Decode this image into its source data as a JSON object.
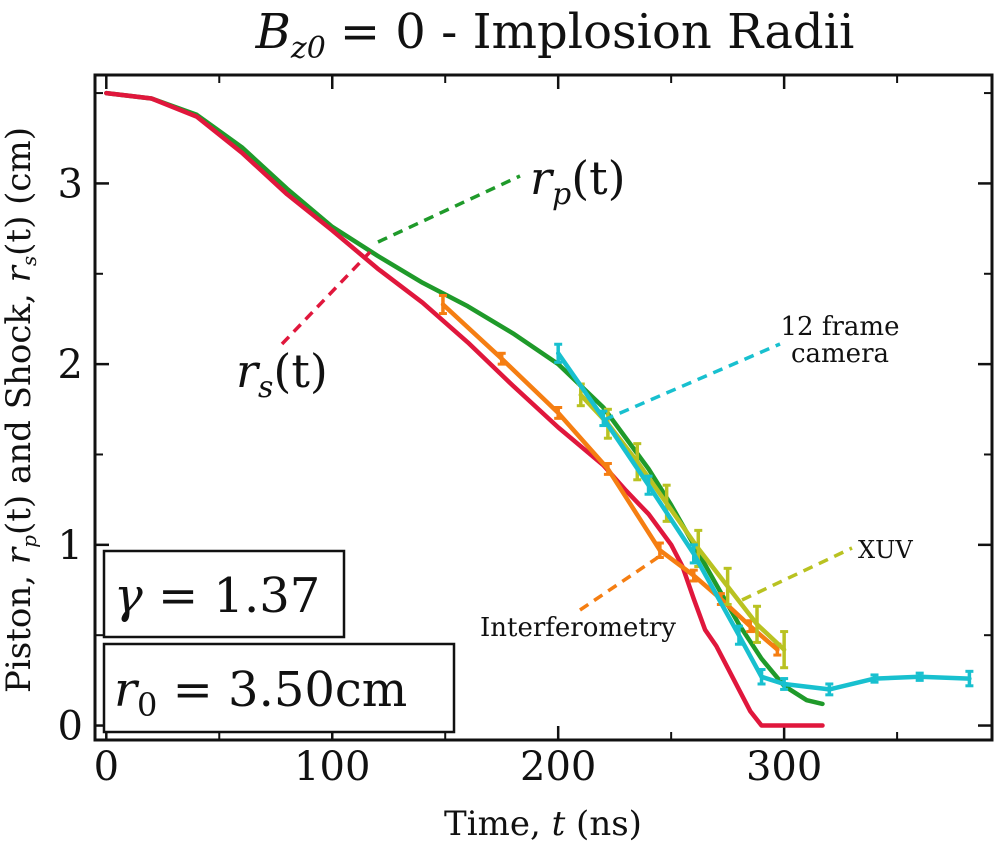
{
  "chart_data": {
    "type": "line",
    "title": "B_z0 = 0 - Implosion Radii",
    "title_parts": {
      "var": "B",
      "sub": "z0",
      "rest": "= 0 - Implosion Radii"
    },
    "xlabel": "Time, t (ns)",
    "xlabel_parts": {
      "pre": "Time, ",
      "var": "t",
      "post": " (ns)"
    },
    "ylabel": "Piston, r_p(t) and Shock, r_s(t) (cm)",
    "ylabel_parts": {
      "a": "Piston, ",
      "b": " and Shock, ",
      "c": " (cm)",
      "rp": "r",
      "rp_sub": "p",
      "rp_arg": "(t)",
      "rs": "r",
      "rs_sub": "s",
      "rs_arg": "(t)"
    },
    "xlim": [
      -5,
      392
    ],
    "ylim": [
      -0.08,
      3.6
    ],
    "xticks": [
      0,
      100,
      200,
      300
    ],
    "yticks": [
      0,
      1,
      2,
      3
    ],
    "x_minor_ticks": [
      50,
      150,
      250,
      350
    ],
    "y_minor_ticks": [
      0.5,
      1.5,
      2.5,
      3.5
    ],
    "series": [
      {
        "name": "r_p(t)",
        "label": "r_p(t)",
        "color": "#1f9a2a",
        "x": [
          0,
          20,
          40,
          60,
          80,
          100,
          120,
          140,
          160,
          180,
          200,
          220,
          240,
          250,
          260,
          270,
          280,
          290,
          300,
          310,
          317
        ],
        "y": [
          3.5,
          3.47,
          3.38,
          3.2,
          2.97,
          2.76,
          2.6,
          2.45,
          2.32,
          2.17,
          2.0,
          1.76,
          1.42,
          1.22,
          1.0,
          0.78,
          0.56,
          0.37,
          0.22,
          0.14,
          0.12
        ]
      },
      {
        "name": "r_s(t)",
        "label": "r_s(t)",
        "color": "#e0173c",
        "x": [
          0,
          20,
          40,
          60,
          80,
          100,
          120,
          140,
          160,
          180,
          200,
          220,
          230,
          240,
          250,
          255,
          260,
          265,
          270,
          275,
          280,
          285,
          290,
          300,
          310,
          317
        ],
        "y": [
          3.5,
          3.47,
          3.37,
          3.17,
          2.94,
          2.74,
          2.53,
          2.34,
          2.12,
          1.88,
          1.65,
          1.44,
          1.3,
          1.17,
          1.0,
          0.88,
          0.7,
          0.53,
          0.44,
          0.32,
          0.2,
          0.08,
          0.0,
          0.0,
          0.0,
          0.0
        ]
      },
      {
        "name": "Interferometry",
        "label": "Interferometry",
        "color": "#f57e12",
        "error_bars": true,
        "x": [
          149,
          175,
          200,
          222,
          245,
          260,
          272,
          285,
          297
        ],
        "y": [
          2.33,
          2.03,
          1.73,
          1.42,
          0.97,
          0.83,
          0.7,
          0.55,
          0.42
        ],
        "err": [
          0.05,
          0.03,
          0.03,
          0.03,
          0.04,
          0.03,
          0.03,
          0.03,
          0.03
        ]
      },
      {
        "name": "XUV",
        "label": "XUV",
        "color": "#b9c221",
        "error_bars": true,
        "x": [
          210,
          222,
          235,
          248,
          262,
          275,
          288,
          300
        ],
        "y": [
          1.83,
          1.67,
          1.46,
          1.23,
          0.98,
          0.77,
          0.56,
          0.42
        ],
        "err": [
          0.06,
          0.08,
          0.1,
          0.1,
          0.1,
          0.1,
          0.1,
          0.1
        ]
      },
      {
        "name": "12 frame camera",
        "label": "12 frame camera",
        "color": "#18c0cf",
        "error_bars": true,
        "x": [
          200,
          220,
          240,
          260,
          280,
          290,
          300,
          320,
          340,
          360,
          382
        ],
        "y": [
          2.06,
          1.7,
          1.33,
          0.95,
          0.5,
          0.27,
          0.23,
          0.2,
          0.26,
          0.27,
          0.26
        ],
        "err": [
          0.05,
          0.04,
          0.05,
          0.05,
          0.05,
          0.04,
          0.03,
          0.03,
          0.02,
          0.02,
          0.04
        ]
      }
    ],
    "annotations": [
      {
        "name": "rp-annot",
        "text": "r_p(t)",
        "series": "r_p(t)"
      },
      {
        "name": "rs-annot",
        "text": "r_s(t)",
        "series": "r_s(t)"
      },
      {
        "name": "camera-annot",
        "text": "12 frame camera",
        "line1": "12 frame",
        "line2": "camera",
        "series": "12 frame camera"
      },
      {
        "name": "xuv-annot",
        "text": "XUV",
        "series": "XUV"
      },
      {
        "name": "interf-annot",
        "text": "Interferometry",
        "series": "Interferometry"
      }
    ],
    "param_boxes": {
      "gamma": {
        "symbol": "γ",
        "eq": " = 1.37"
      },
      "r0": {
        "symbol": "r",
        "sub": "0",
        "eq": " = 3.50cm"
      }
    },
    "grid": false,
    "legend": "none"
  }
}
